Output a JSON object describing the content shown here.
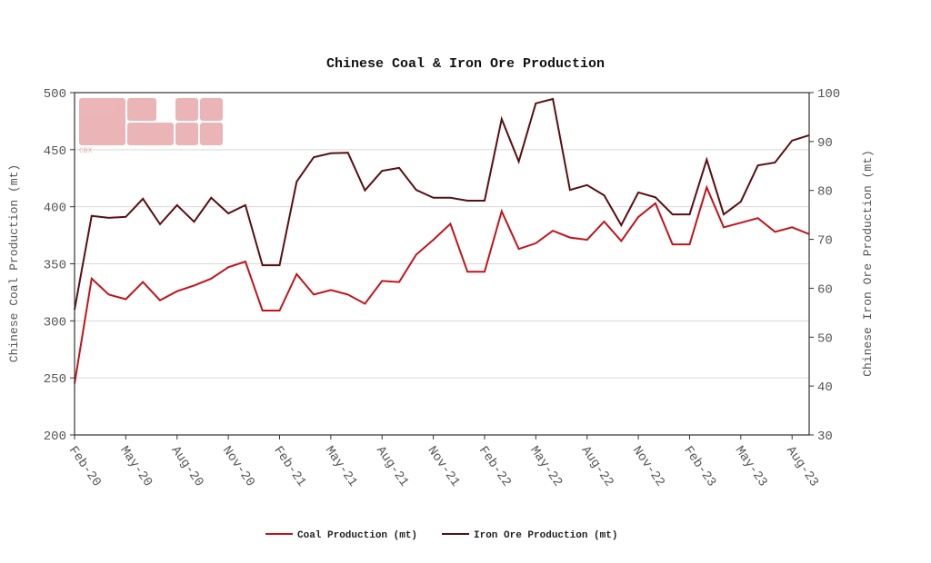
{
  "chart_data": {
    "type": "line",
    "title": "Chinese Coal & Iron Ore Production",
    "ylabel": "Chinese Coal Production (mt)",
    "y2label": "Chinese Iron Ore Production (mt)",
    "ylim": [
      200,
      500
    ],
    "y2lim": [
      30,
      100
    ],
    "yticks": [
      200,
      250,
      300,
      350,
      400,
      450,
      500
    ],
    "y2ticks": [
      30,
      40,
      50,
      60,
      70,
      80,
      90,
      100
    ],
    "xtick_labels": [
      "Feb-20",
      "May-20",
      "Aug-20",
      "Nov-20",
      "Feb-21",
      "May-21",
      "Aug-21",
      "Nov-21",
      "Feb-22",
      "May-22",
      "Aug-22",
      "Nov-22",
      "Feb-23",
      "May-23",
      "Aug-23"
    ],
    "grid": true,
    "legend_placement": "bottom",
    "x": [
      "2020-02",
      "2020-03",
      "2020-04",
      "2020-05",
      "2020-06",
      "2020-07",
      "2020-08",
      "2020-09",
      "2020-10",
      "2020-11",
      "2020-12",
      "2021-01",
      "2021-02",
      "2021-03",
      "2021-04",
      "2021-05",
      "2021-06",
      "2021-07",
      "2021-08",
      "2021-09",
      "2021-10",
      "2021-11",
      "2021-12",
      "2022-01",
      "2022-02",
      "2022-03",
      "2022-04",
      "2022-05",
      "2022-06",
      "2022-07",
      "2022-08",
      "2022-09",
      "2022-10",
      "2022-11",
      "2022-12",
      "2023-01",
      "2023-02",
      "2023-03",
      "2023-04",
      "2023-05",
      "2023-06",
      "2023-07",
      "2023-08",
      "2023-09"
    ],
    "series": [
      {
        "name": "Coal Production (mt)",
        "axis": "left",
        "color": "#c0141a",
        "values": [
          245,
          337,
          323,
          319,
          334,
          318,
          326,
          331,
          337,
          347,
          352,
          309,
          309,
          341,
          323,
          327,
          323,
          315,
          335,
          334,
          358,
          371,
          385,
          343,
          343,
          396,
          363,
          368,
          379,
          373,
          371,
          387,
          370,
          391,
          403,
          367,
          367,
          417,
          382,
          386,
          390,
          378,
          382,
          376
        ]
      },
      {
        "name": "Iron Ore Production (mt)",
        "axis": "right",
        "color": "#5a0f12",
        "values": [
          55.6,
          74.8,
          74.4,
          74.6,
          78.3,
          73.1,
          77.0,
          73.6,
          78.5,
          75.3,
          77.0,
          64.7,
          64.7,
          81.8,
          86.8,
          87.6,
          87.7,
          80.0,
          84.0,
          84.6,
          80.1,
          78.5,
          78.5,
          77.9,
          77.9,
          94.6,
          85.9,
          97.8,
          98.7,
          80.1,
          81.1,
          79.0,
          72.9,
          79.6,
          78.6,
          75.1,
          75.1,
          86.3,
          75.1,
          77.7,
          85.1,
          85.7,
          90.2,
          91.3
        ]
      }
    ]
  },
  "watermark": "CBX"
}
